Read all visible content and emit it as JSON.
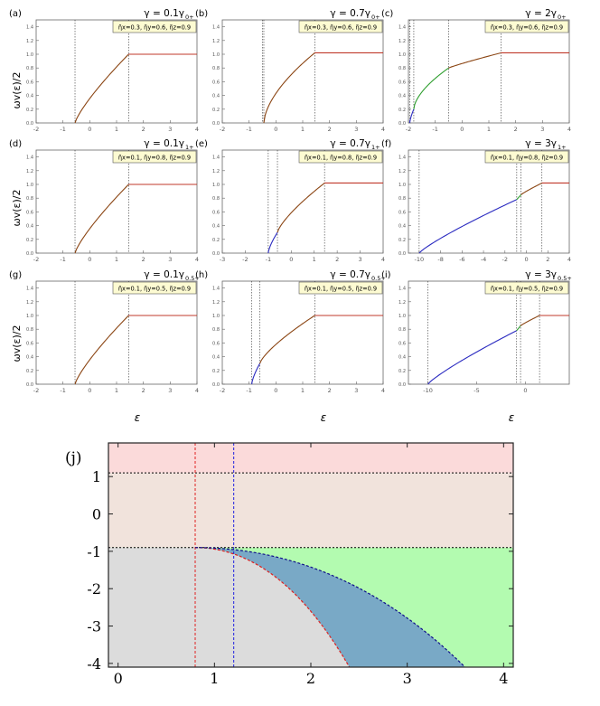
{
  "chart_data": {
    "ylabel": "ωv(ε)/2",
    "xlabel": "ε",
    "panels": [
      {
        "label": "(a)",
        "gamma_text": "γ = 0.1γ",
        "gamma_sub": "0+",
        "params": "η̃x=0.3, η̃y=0.6, η̃z=0.9",
        "type": "line",
        "xlim": [
          -2,
          4
        ],
        "ylim": [
          0,
          1.5
        ],
        "xticks": [
          -2,
          -1,
          0,
          1,
          2,
          3,
          4
        ],
        "yticks": [
          "0.0",
          "0.2",
          "0.4",
          "0.6",
          "0.8",
          "1.0",
          "1.2",
          "1.4"
        ],
        "vlines": [
          -0.55,
          1.45
        ],
        "series": [
          {
            "color": "#8B4513",
            "from": -0.55,
            "to": 1.45,
            "y0": 0.0,
            "y1": 1.0,
            "p": 0.8
          },
          {
            "color": "#c0392b",
            "from": 1.45,
            "to": 4.0,
            "y0": 1.0,
            "y1": 1.0,
            "p": 1
          }
        ]
      },
      {
        "label": "(b)",
        "gamma_text": "γ = 0.7γ",
        "gamma_sub": "0+",
        "params": "η̃x=0.3, η̃y=0.6, η̃z=0.9",
        "type": "line",
        "xlim": [
          -2,
          4
        ],
        "ylim": [
          0,
          1.5
        ],
        "xticks": [
          -2,
          -1,
          0,
          1,
          2,
          3,
          4
        ],
        "yticks": [
          "0.0",
          "0.2",
          "0.4",
          "0.6",
          "0.8",
          "1.0",
          "1.2",
          "1.4"
        ],
        "vlines": [
          -0.5,
          -0.45,
          1.45
        ],
        "series": [
          {
            "color": "#8B4513",
            "from": -0.45,
            "to": 1.45,
            "y0": 0.0,
            "y1": 1.02,
            "p": 0.6
          },
          {
            "color": "#c0392b",
            "from": 1.45,
            "to": 4.0,
            "y0": 1.02,
            "y1": 1.02,
            "p": 1
          }
        ]
      },
      {
        "label": "(c)",
        "gamma_text": "γ = 2γ",
        "gamma_sub": "0+",
        "params": "η̃x=0.3, η̃y=0.6, η̃z=0.9",
        "type": "line",
        "xlim": [
          -2,
          4
        ],
        "ylim": [
          0,
          1.5
        ],
        "xticks": [
          -2,
          -1,
          0,
          1,
          2,
          3,
          4
        ],
        "yticks": [
          "0.0",
          "0.2",
          "0.4",
          "0.6",
          "0.8",
          "1.0",
          "1.2",
          "1.4"
        ],
        "vlines": [
          -1.95,
          -1.8,
          -0.5,
          1.45
        ],
        "series": [
          {
            "color": "#2a2ac0",
            "from": -1.95,
            "to": -1.8,
            "y0": 0.0,
            "y1": 0.2,
            "p": 0.7
          },
          {
            "color": "#2e9e2e",
            "from": -1.8,
            "to": -0.5,
            "y0": 0.2,
            "y1": 0.8,
            "p": 0.6
          },
          {
            "color": "#8B4513",
            "from": -0.5,
            "to": 1.45,
            "y0": 0.8,
            "y1": 1.02,
            "p": 0.9
          },
          {
            "color": "#c0392b",
            "from": 1.45,
            "to": 4.0,
            "y0": 1.02,
            "y1": 1.02,
            "p": 1
          }
        ]
      },
      {
        "label": "(d)",
        "gamma_text": "γ = 0.1γ",
        "gamma_sub": "1+",
        "params": "η̃x=0.1, η̃y=0.8, η̃z=0.9",
        "type": "line",
        "xlim": [
          -2,
          4
        ],
        "ylim": [
          0,
          1.5
        ],
        "xticks": [
          -2,
          -1,
          0,
          1,
          2,
          3,
          4
        ],
        "yticks": [
          "0.0",
          "0.2",
          "0.4",
          "0.6",
          "0.8",
          "1.0",
          "1.2",
          "1.4"
        ],
        "vlines": [
          -0.55,
          1.45
        ],
        "series": [
          {
            "color": "#8B4513",
            "from": -0.55,
            "to": 1.45,
            "y0": 0.0,
            "y1": 1.0,
            "p": 0.8
          },
          {
            "color": "#c0392b",
            "from": 1.45,
            "to": 4.0,
            "y0": 1.0,
            "y1": 1.0,
            "p": 1
          }
        ]
      },
      {
        "label": "(e)",
        "gamma_text": "γ = 0.7γ",
        "gamma_sub": "1+",
        "params": "η̃x=0.1, η̃y=0.8, η̃z=0.9",
        "type": "line",
        "xlim": [
          -3,
          4
        ],
        "ylim": [
          0,
          1.5
        ],
        "xticks": [
          -3,
          -2,
          -1,
          0,
          1,
          2,
          3,
          4
        ],
        "yticks": [
          "0.0",
          "0.2",
          "0.4",
          "0.6",
          "0.8",
          "1.0",
          "1.2",
          "1.4"
        ],
        "vlines": [
          -1.0,
          -0.6,
          1.45
        ],
        "series": [
          {
            "color": "#2a2ac0",
            "from": -1.0,
            "to": -0.6,
            "y0": 0.0,
            "y1": 0.3,
            "p": 0.7
          },
          {
            "color": "#8B4513",
            "from": -0.6,
            "to": 1.45,
            "y0": 0.3,
            "y1": 1.02,
            "p": 0.75
          },
          {
            "color": "#c0392b",
            "from": 1.45,
            "to": 4.0,
            "y0": 1.02,
            "y1": 1.02,
            "p": 1
          }
        ]
      },
      {
        "label": "(f)",
        "gamma_text": "γ = 3γ",
        "gamma_sub": "1+",
        "params": "η̃x=0.1, η̃y=0.8, η̃z=0.9",
        "type": "line",
        "xlim": [
          -11,
          4
        ],
        "ylim": [
          0,
          1.5
        ],
        "xticks": [
          -10,
          -8,
          -6,
          -4,
          -2,
          0,
          2,
          4
        ],
        "yticks": [
          "0.0",
          "0.2",
          "0.4",
          "0.6",
          "0.8",
          "1.0",
          "1.2",
          "1.4"
        ],
        "vlines": [
          -10.0,
          -0.9,
          -0.5,
          1.45
        ],
        "series": [
          {
            "color": "#2a2ac0",
            "from": -10.0,
            "to": -0.9,
            "y0": 0.0,
            "y1": 0.78,
            "p": 0.85
          },
          {
            "color": "#2e9e2e",
            "from": -0.9,
            "to": -0.5,
            "y0": 0.78,
            "y1": 0.85,
            "p": 1
          },
          {
            "color": "#8B4513",
            "from": -0.5,
            "to": 1.45,
            "y0": 0.85,
            "y1": 1.02,
            "p": 0.9
          },
          {
            "color": "#c0392b",
            "from": 1.45,
            "to": 4.0,
            "y0": 1.02,
            "y1": 1.02,
            "p": 1
          }
        ]
      },
      {
        "label": "(g)",
        "gamma_text": "γ = 0.1γ",
        "gamma_sub": "0.5+",
        "params": "η̃x=0.1, η̃y=0.5, η̃z=0.9",
        "type": "line",
        "xlim": [
          -2,
          4
        ],
        "ylim": [
          0,
          1.5
        ],
        "xticks": [
          -2,
          -1,
          0,
          1,
          2,
          3,
          4
        ],
        "yticks": [
          "0.0",
          "0.2",
          "0.4",
          "0.6",
          "0.8",
          "1.0",
          "1.2",
          "1.4"
        ],
        "vlines": [
          -0.55,
          1.45
        ],
        "series": [
          {
            "color": "#8B4513",
            "from": -0.55,
            "to": 1.45,
            "y0": 0.0,
            "y1": 1.0,
            "p": 0.8
          },
          {
            "color": "#c0392b",
            "from": 1.45,
            "to": 4.0,
            "y0": 1.0,
            "y1": 1.0,
            "p": 1
          }
        ]
      },
      {
        "label": "(h)",
        "gamma_text": "γ = 0.7γ",
        "gamma_sub": "0.5+",
        "params": "η̃x=0.1, η̃y=0.5, η̃z=0.9",
        "type": "line",
        "xlim": [
          -2,
          4
        ],
        "ylim": [
          0,
          1.5
        ],
        "xticks": [
          -2,
          -1,
          0,
          1,
          2,
          3,
          4
        ],
        "yticks": [
          "0.0",
          "0.2",
          "0.4",
          "0.6",
          "0.8",
          "1.0",
          "1.2",
          "1.4"
        ],
        "vlines": [
          -0.9,
          -0.6,
          1.45
        ],
        "series": [
          {
            "color": "#2a2ac0",
            "from": -0.9,
            "to": -0.6,
            "y0": 0.0,
            "y1": 0.3,
            "p": 0.7
          },
          {
            "color": "#8B4513",
            "from": -0.6,
            "to": 1.45,
            "y0": 0.3,
            "y1": 1.0,
            "p": 0.75
          },
          {
            "color": "#c0392b",
            "from": 1.45,
            "to": 4.0,
            "y0": 1.0,
            "y1": 1.0,
            "p": 1
          }
        ]
      },
      {
        "label": "(i)",
        "gamma_text": "γ = 3γ",
        "gamma_sub": "0.5+",
        "params": "η̃x=0.1, η̃y=0.5, η̃z=0.9",
        "type": "line",
        "xlim": [
          -12,
          4.5
        ],
        "ylim": [
          0,
          1.5
        ],
        "xticks": [
          -10,
          -5,
          0
        ],
        "yticks": [
          "0.0",
          "0.2",
          "0.4",
          "0.6",
          "0.8",
          "1.0",
          "1.2",
          "1.4"
        ],
        "vlines": [
          -10.0,
          -0.9,
          -0.5,
          1.45
        ],
        "series": [
          {
            "color": "#2a2ac0",
            "from": -10.0,
            "to": -0.9,
            "y0": 0.0,
            "y1": 0.78,
            "p": 0.85
          },
          {
            "color": "#2e9e2e",
            "from": -0.9,
            "to": -0.5,
            "y0": 0.78,
            "y1": 0.85,
            "p": 1
          },
          {
            "color": "#8B4513",
            "from": -0.5,
            "to": 1.45,
            "y0": 0.85,
            "y1": 1.0,
            "p": 0.9
          },
          {
            "color": "#c0392b",
            "from": 1.45,
            "to": 4.5,
            "y0": 1.0,
            "y1": 1.0,
            "p": 1
          }
        ]
      }
    ],
    "phase": {
      "label": "(j)",
      "type": "area",
      "xlim": [
        -0.1,
        4.1
      ],
      "ylim": [
        -4.1,
        1.9
      ],
      "xticks": [
        0,
        1,
        2,
        3,
        4
      ],
      "yticks": [
        1,
        0,
        -1,
        -2,
        -3,
        -4
      ],
      "hlines": [
        1.1,
        -0.9
      ],
      "red_vline": 0.8,
      "blue_vline": 1.2,
      "red_curve_end": [
        2.4,
        -4.1
      ],
      "blue_curve_end": [
        3.6,
        -4.1
      ],
      "region_colors": {
        "top": "#fbdada",
        "band": "#f1e3dc",
        "gray": "#dcdcdc",
        "blue": "#79a9c6",
        "green": "#b3fbb0"
      }
    }
  }
}
